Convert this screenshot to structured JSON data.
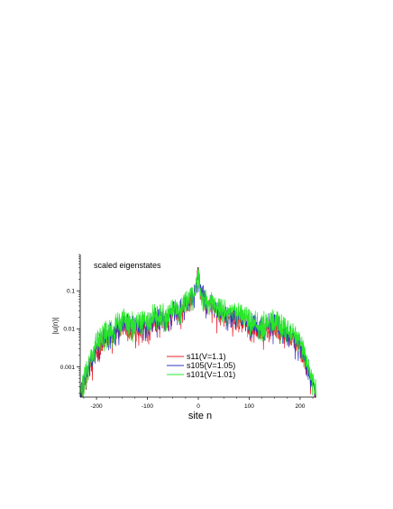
{
  "chart_data": {
    "type": "line",
    "annotation": "scaled eigenstates",
    "xlabel": "site n",
    "ylabel": "|u(n)|",
    "xlim": [
      -232,
      232
    ],
    "ylim": [
      0.00016,
      0.9
    ],
    "yscale": "log",
    "x_ticks": [
      -200,
      -100,
      0,
      100,
      200
    ],
    "x_tick_labels": [
      "-200",
      "-100",
      "0",
      "100",
      "200"
    ],
    "y_ticks": [
      0.001,
      0.01,
      0.1
    ],
    "y_tick_labels": [
      "0.001",
      "0.01",
      "0.1"
    ],
    "legend_position": "lower-center",
    "series": [
      {
        "name": "s11(V=1.1)",
        "color": "#e8202a",
        "envelope_x": [
          -232,
          -200,
          -180,
          -144,
          -120,
          -100,
          -89,
          -60,
          -55,
          -34,
          -21,
          -13,
          -8,
          0,
          8,
          13,
          21,
          34,
          55,
          60,
          89,
          100,
          120,
          144,
          180,
          200,
          232
        ],
        "envelope_y": [
          0.00018,
          0.003,
          0.006,
          0.012,
          0.009,
          0.012,
          0.018,
          0.016,
          0.025,
          0.03,
          0.05,
          0.06,
          0.08,
          0.3,
          0.08,
          0.06,
          0.05,
          0.03,
          0.025,
          0.016,
          0.018,
          0.012,
          0.009,
          0.012,
          0.006,
          0.003,
          0.00018
        ],
        "peaks_x": [
          -233,
          -199,
          -178,
          -144,
          -110,
          -89,
          -68,
          -55,
          -42,
          -34,
          -21,
          -13,
          -8,
          0,
          8,
          13,
          21,
          34,
          42,
          55,
          68,
          89,
          110,
          144,
          178,
          199,
          233
        ],
        "peaks_y": [
          0.0003,
          0.02,
          0.04,
          0.15,
          0.04,
          0.18,
          0.06,
          0.2,
          0.05,
          0.25,
          0.15,
          0.3,
          0.25,
          0.85,
          0.25,
          0.3,
          0.15,
          0.25,
          0.05,
          0.2,
          0.06,
          0.18,
          0.04,
          0.15,
          0.04,
          0.02,
          0.0003
        ],
        "dip_depth": 0.2
      },
      {
        "name": "s105(V=1.05)",
        "color": "#2b35c8",
        "envelope_x": [
          -232,
          -200,
          -180,
          -144,
          -120,
          -100,
          -89,
          -60,
          -55,
          -34,
          -21,
          -13,
          -8,
          0,
          8,
          13,
          21,
          34,
          55,
          60,
          89,
          100,
          120,
          144,
          180,
          200,
          232
        ],
        "envelope_y": [
          0.00022,
          0.004,
          0.008,
          0.016,
          0.012,
          0.015,
          0.022,
          0.02,
          0.03,
          0.035,
          0.055,
          0.065,
          0.085,
          0.3,
          0.085,
          0.065,
          0.055,
          0.035,
          0.03,
          0.02,
          0.022,
          0.015,
          0.012,
          0.016,
          0.008,
          0.004,
          0.00022
        ],
        "peaks_x": [
          -233,
          -199,
          -178,
          -144,
          -110,
          -89,
          -68,
          -55,
          -42,
          -34,
          -21,
          -13,
          -8,
          0,
          8,
          13,
          21,
          34,
          42,
          55,
          68,
          89,
          110,
          144,
          178,
          199,
          233
        ],
        "peaks_y": [
          0.0003,
          0.02,
          0.04,
          0.15,
          0.04,
          0.18,
          0.06,
          0.2,
          0.05,
          0.25,
          0.15,
          0.3,
          0.25,
          0.85,
          0.25,
          0.3,
          0.15,
          0.25,
          0.05,
          0.2,
          0.06,
          0.18,
          0.04,
          0.15,
          0.04,
          0.02,
          0.0003
        ],
        "dip_depth": 0.3
      },
      {
        "name": "s101(V=1.01)",
        "color": "#28e828",
        "envelope_x": [
          -232,
          -200,
          -180,
          -144,
          -120,
          -100,
          -89,
          -60,
          -55,
          -34,
          -21,
          -13,
          -8,
          0,
          8,
          13,
          21,
          34,
          55,
          60,
          89,
          100,
          120,
          144,
          180,
          200,
          232
        ],
        "envelope_y": [
          0.00025,
          0.005,
          0.01,
          0.02,
          0.015,
          0.02,
          0.028,
          0.025,
          0.035,
          0.04,
          0.06,
          0.07,
          0.09,
          0.3,
          0.09,
          0.07,
          0.06,
          0.04,
          0.035,
          0.025,
          0.028,
          0.02,
          0.015,
          0.02,
          0.01,
          0.005,
          0.00025
        ],
        "peaks_x": [
          -233,
          -199,
          -178,
          -144,
          -110,
          -89,
          -68,
          -55,
          -42,
          -34,
          -21,
          -13,
          -8,
          0,
          8,
          13,
          21,
          34,
          42,
          55,
          68,
          89,
          110,
          144,
          178,
          199,
          233
        ],
        "peaks_y": [
          0.0003,
          0.02,
          0.04,
          0.15,
          0.04,
          0.18,
          0.06,
          0.2,
          0.05,
          0.25,
          0.15,
          0.3,
          0.25,
          0.85,
          0.25,
          0.3,
          0.15,
          0.25,
          0.05,
          0.2,
          0.06,
          0.18,
          0.04,
          0.15,
          0.04,
          0.02,
          0.0003
        ],
        "dip_depth": 0.45
      }
    ]
  }
}
